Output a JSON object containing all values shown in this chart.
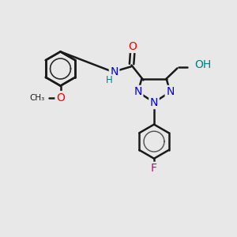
{
  "bg_color": "#e8e8e8",
  "bond_color": "#1a1a1a",
  "bond_width": 1.8,
  "atom_colors": {
    "O": "#ff0000",
    "N": "#0000ee",
    "F": "#cc0077",
    "H": "#008080",
    "C": "#1a1a1a"
  },
  "font_size_atom": 10,
  "font_size_h": 8.5
}
